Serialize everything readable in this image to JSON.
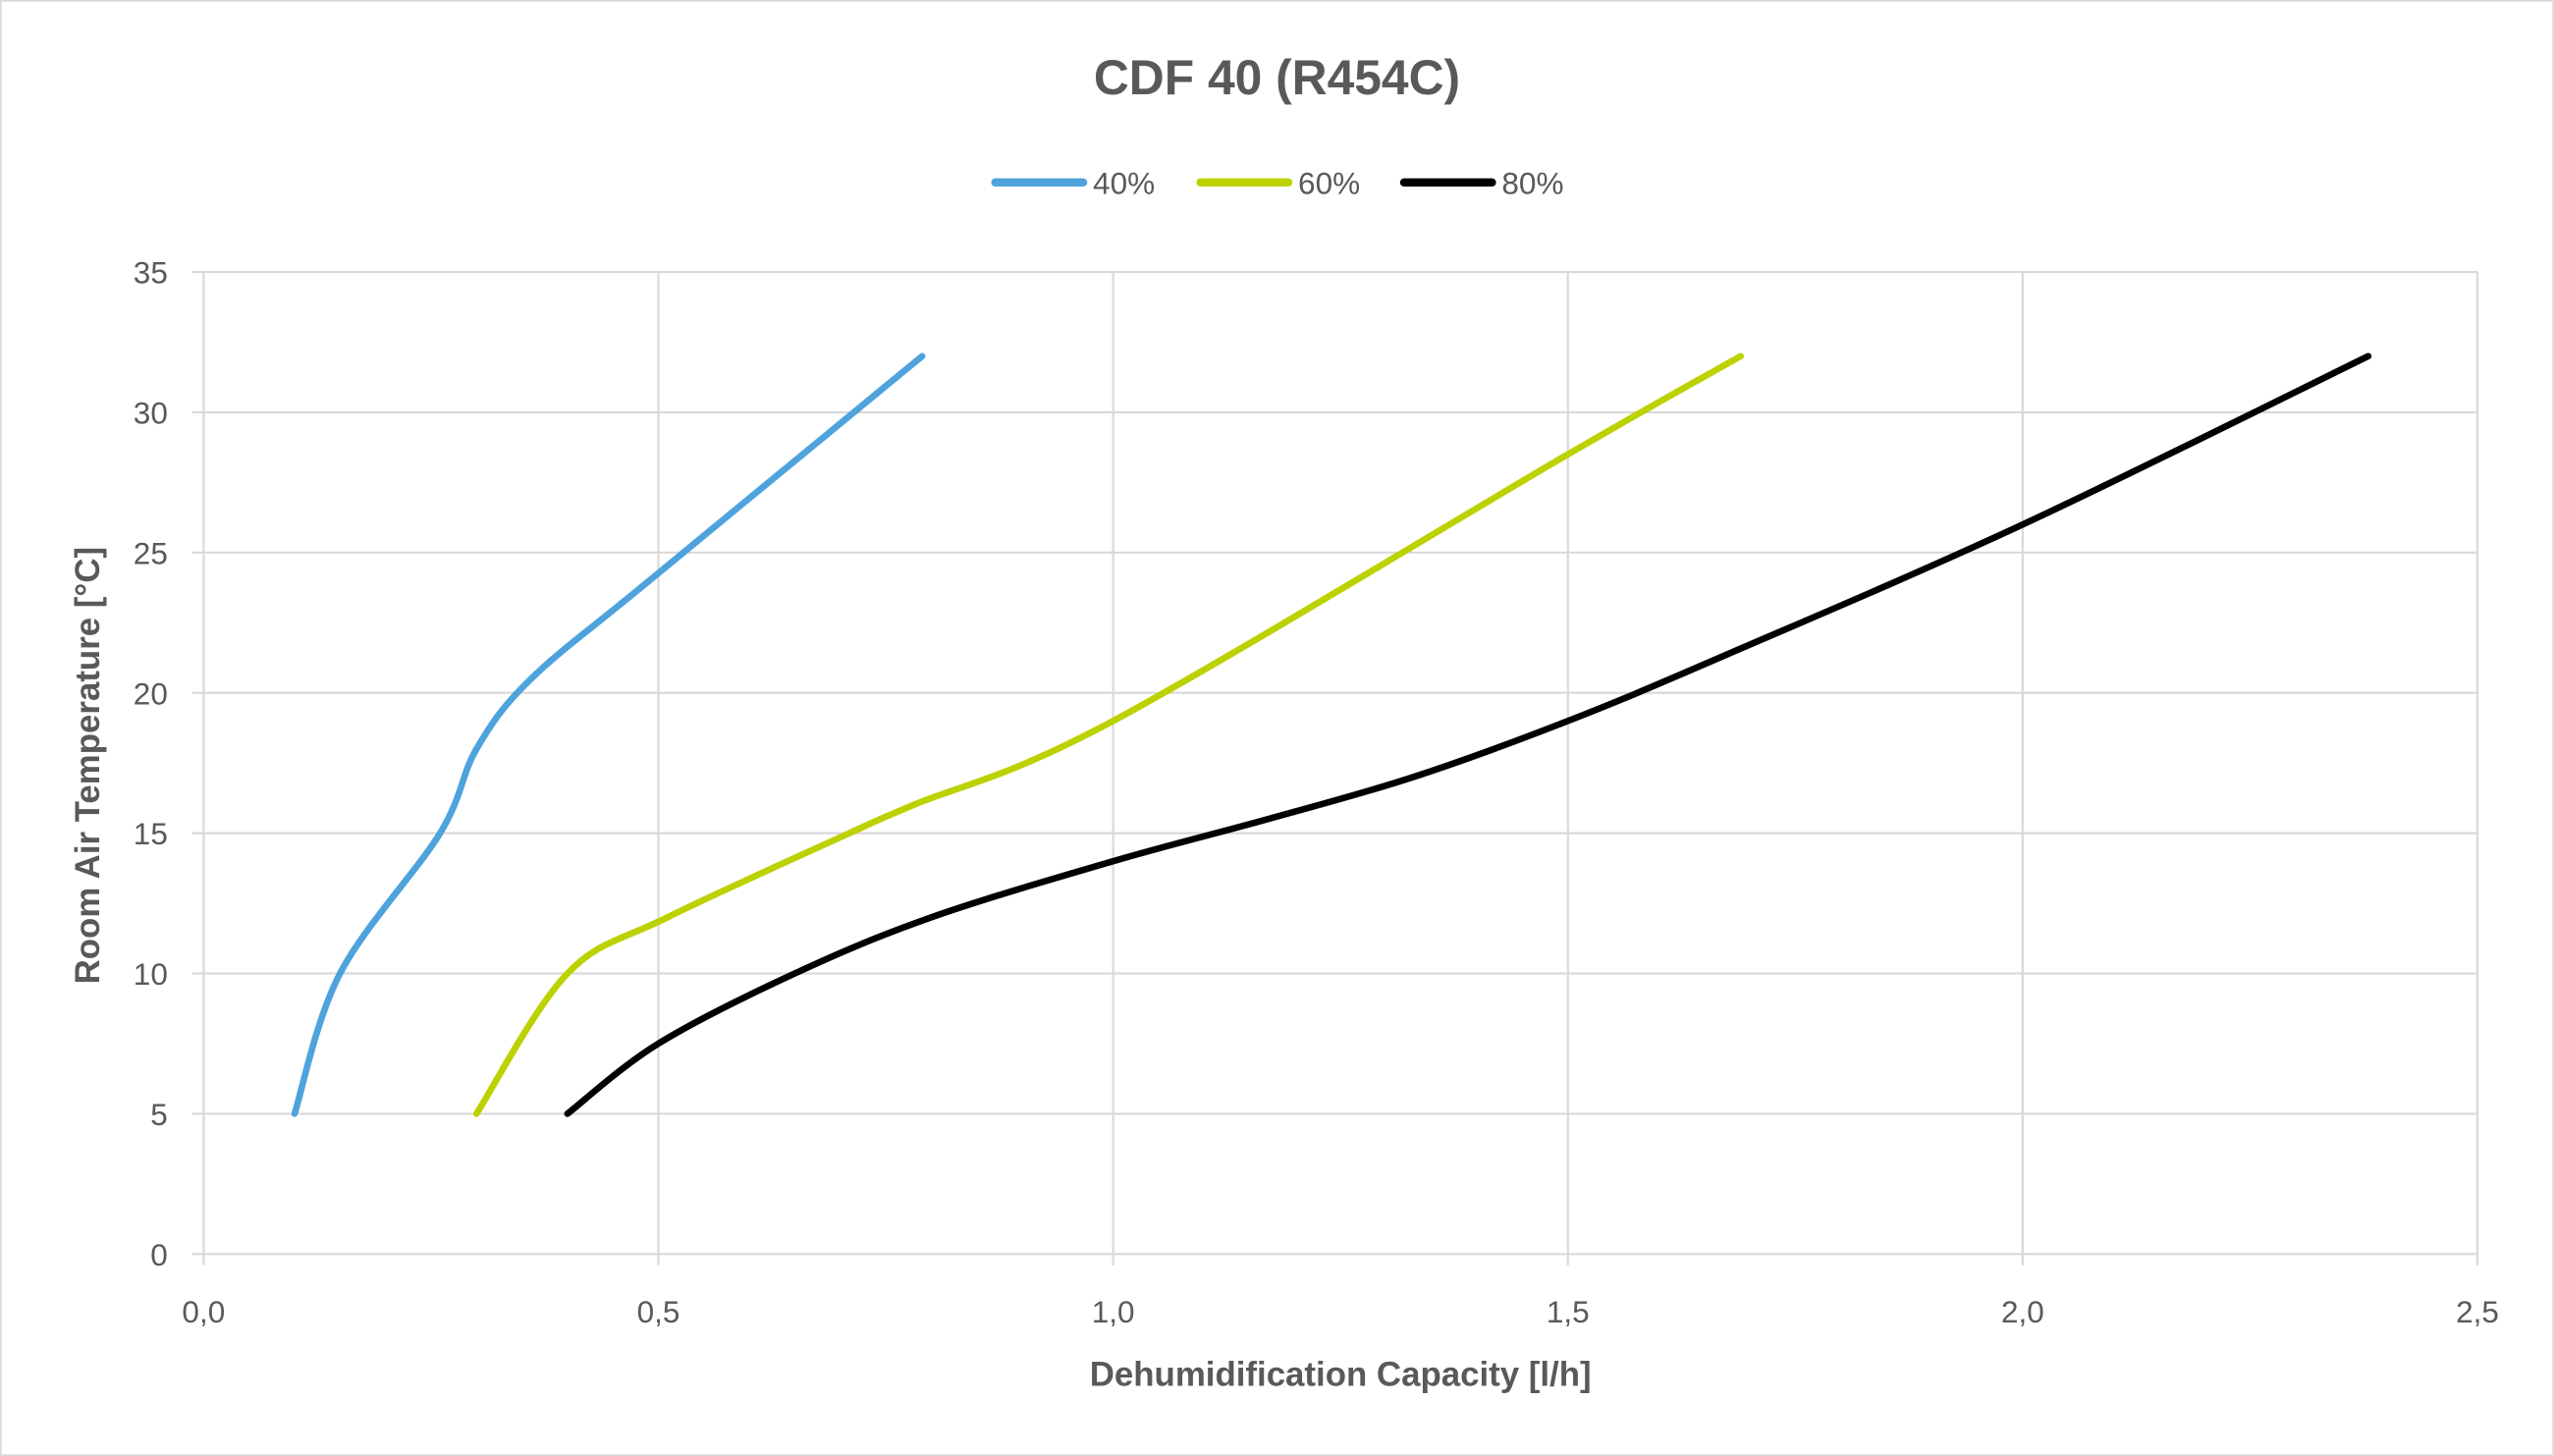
{
  "chart_data": {
    "type": "line",
    "title": "CDF 40 (R454C)",
    "xlabel": "Dehumidification Capacity [l/h]",
    "ylabel": "Room Air Temperature [°C]",
    "xlim": [
      0,
      2.5
    ],
    "ylim": [
      0,
      35
    ],
    "x_ticks": [
      "0,0",
      "0,5",
      "1,0",
      "1,5",
      "2,0",
      "2,5"
    ],
    "y_ticks": [
      "0",
      "5",
      "10",
      "15",
      "20",
      "25",
      "30",
      "35"
    ],
    "grid": true,
    "legend_position": "top",
    "series": [
      {
        "name": "40%",
        "color": "#4EA3DD",
        "points": [
          [
            0.1,
            5
          ],
          [
            0.15,
            10
          ],
          [
            0.26,
            15
          ],
          [
            0.3,
            18
          ],
          [
            0.36,
            20.5
          ],
          [
            0.49,
            24
          ],
          [
            0.79,
            32
          ]
        ]
      },
      {
        "name": "60%",
        "color": "#BCD200",
        "points": [
          [
            0.3,
            5
          ],
          [
            0.4,
            10
          ],
          [
            0.51,
            12
          ],
          [
            0.71,
            15
          ],
          [
            0.78,
            16
          ],
          [
            1.0,
            19
          ],
          [
            1.5,
            28.5
          ],
          [
            1.69,
            32
          ]
        ]
      },
      {
        "name": "80%",
        "color": "#000000",
        "points": [
          [
            0.4,
            5
          ],
          [
            0.5,
            7.5
          ],
          [
            0.65,
            10
          ],
          [
            0.8,
            12
          ],
          [
            1.0,
            14
          ],
          [
            1.17,
            15.5
          ],
          [
            1.33,
            17
          ],
          [
            1.5,
            19
          ],
          [
            1.67,
            21.3
          ],
          [
            2.0,
            26
          ],
          [
            2.38,
            32
          ]
        ]
      }
    ]
  }
}
